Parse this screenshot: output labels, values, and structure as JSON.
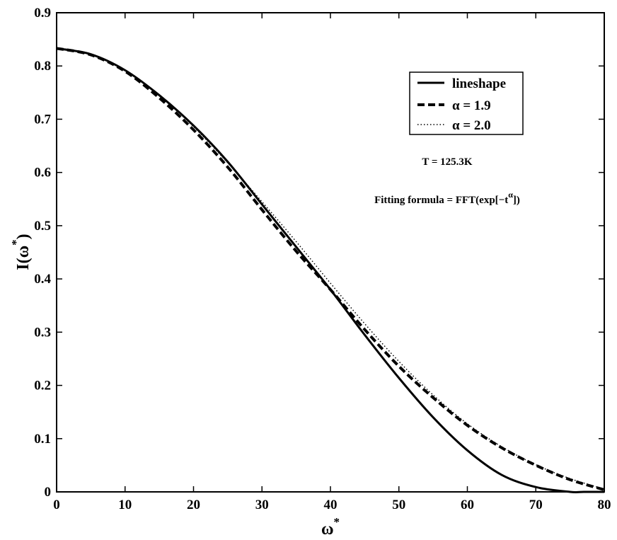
{
  "chart_data": {
    "type": "line",
    "xlabel": "ω*",
    "xlabel_base": "ω",
    "xlabel_sup": "*",
    "ylabel": "I(ω*)",
    "ylabel_pre": "I(ω",
    "ylabel_sup": "*",
    "ylabel_post": ")",
    "xlim": [
      0,
      80
    ],
    "ylim": [
      0,
      0.9
    ],
    "xticks": [
      0,
      10,
      20,
      30,
      40,
      50,
      60,
      70,
      80
    ],
    "xtick_labels": [
      "0",
      "10",
      "20",
      "30",
      "40",
      "50",
      "60",
      "70",
      "80"
    ],
    "yticks": [
      0,
      0.1,
      0.2,
      0.3,
      0.4,
      0.5,
      0.6,
      0.7,
      0.8,
      0.9
    ],
    "ytick_labels": [
      "0",
      "0.1",
      "0.2",
      "0.3",
      "0.4",
      "0.5",
      "0.6",
      "0.7",
      "0.8",
      "0.9"
    ],
    "grid": false,
    "legend_position": "top-right",
    "series": [
      {
        "name": "lineshape",
        "style": "solid",
        "color": "#000000",
        "x": [
          0,
          5,
          10,
          15,
          20,
          25,
          30,
          35,
          40,
          45,
          50,
          55,
          60,
          65,
          70,
          75,
          77,
          80
        ],
        "y": [
          0.833,
          0.822,
          0.792,
          0.745,
          0.688,
          0.62,
          0.54,
          0.46,
          0.38,
          0.295,
          0.214,
          0.14,
          0.078,
          0.032,
          0.009,
          0.0,
          0.0,
          0.0
        ]
      },
      {
        "name": "α = 1.9",
        "style": "dashed",
        "color": "#000000",
        "x": [
          0,
          5,
          10,
          15,
          20,
          25,
          30,
          35,
          40,
          45,
          50,
          55,
          60,
          65,
          70,
          75,
          80
        ],
        "y": [
          0.833,
          0.821,
          0.79,
          0.74,
          0.68,
          0.61,
          0.53,
          0.452,
          0.38,
          0.305,
          0.236,
          0.177,
          0.125,
          0.083,
          0.05,
          0.023,
          0.004
        ]
      },
      {
        "name": "α = 2.0",
        "style": "dotted",
        "color": "#000000",
        "x": [
          0,
          5,
          10,
          15,
          20,
          25,
          30,
          35,
          40,
          45,
          50,
          55,
          60,
          65,
          70,
          75,
          80
        ],
        "y": [
          0.833,
          0.822,
          0.792,
          0.745,
          0.686,
          0.618,
          0.545,
          0.47,
          0.392,
          0.316,
          0.245,
          0.182,
          0.128,
          0.085,
          0.051,
          0.025,
          0.005
        ]
      }
    ],
    "annotations": {
      "temperature": "T = 125.3K",
      "formula_pre": "Fitting formula = FFT(exp[−t",
      "formula_sup": "α",
      "formula_post": "])"
    }
  }
}
